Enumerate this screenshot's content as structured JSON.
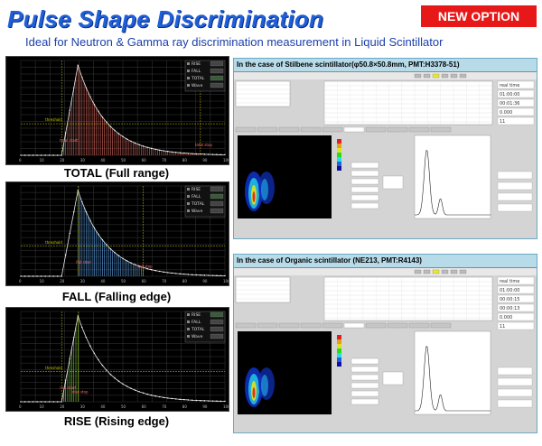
{
  "header": {
    "title": "Pulse Shape Discrimination",
    "badge": "NEW OPTION",
    "subtitle": "Ideal for Neutron & Gamma ray discrimination measurement in Liquid Scintillator"
  },
  "plots": [
    {
      "caption": "TOTAL (Full range)",
      "legend": [
        "RISE",
        "FALL",
        "TOTAL",
        "Wave"
      ],
      "highlight": "TOTAL",
      "marks": [
        "threshold",
        "total start",
        "total stop"
      ]
    },
    {
      "caption": "FALL (Falling edge)",
      "legend": [
        "RISE",
        "FALL",
        "TOTAL",
        "Wave"
      ],
      "highlight": "FALL",
      "marks": [
        "threshold",
        "fall start",
        "fall stop"
      ]
    },
    {
      "caption": "RISE (Rising edge)",
      "legend": [
        "RISE",
        "FALL",
        "TOTAL",
        "Wave"
      ],
      "highlight": "RISE",
      "marks": [
        "threshold",
        "rise start",
        "rise stop"
      ]
    }
  ],
  "panels": [
    {
      "title": "In the case of Stilbene scintillator(φ50.8×50.8mm, PMT:H3378-51)",
      "status": [
        "real time",
        "01:00:00",
        "00:01:36",
        "0.000",
        "11"
      ]
    },
    {
      "title": "In the case of Organic scintillator (NE213, PMT:R4143)",
      "status": [
        "real time",
        "01:00:00",
        "00:00:15",
        "00:00:13",
        "0.000",
        "11"
      ]
    }
  ],
  "colors": {
    "title": "#1f5fd8",
    "badge": "#e61818",
    "subtitle": "#1a3faa",
    "panel": "#b8dbe9"
  }
}
